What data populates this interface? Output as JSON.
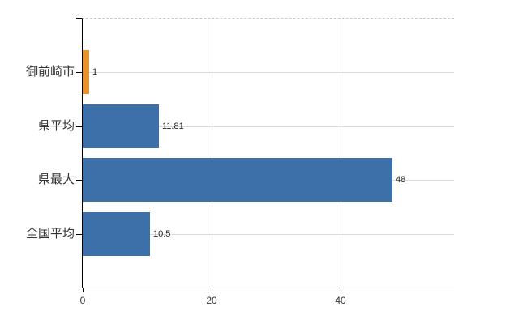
{
  "chart_data": {
    "type": "bar",
    "orientation": "horizontal",
    "title": "",
    "categories": [
      "御前崎市",
      "県平均",
      "県最大",
      "全国平均"
    ],
    "values": [
      1,
      11.81,
      48,
      10.5
    ],
    "value_labels": [
      "1",
      "11.81",
      "48",
      "10.5"
    ],
    "bar_colors": [
      "#e8912e",
      "#3d6fa8",
      "#3d6fa8",
      "#3d6fa8"
    ],
    "x_tick_labels": [
      "0",
      "20",
      "40"
    ],
    "x_tick_values": [
      0,
      20,
      40
    ],
    "xlim": [
      0,
      57.6
    ],
    "grid": true,
    "legend_position": "none",
    "colors": {
      "bar_default": "#3d6fa8",
      "bar_highlight": "#e8912e",
      "gridline": "#d9d9d9",
      "axis": "#000000",
      "text": "#333333",
      "background": "#ffffff"
    }
  }
}
